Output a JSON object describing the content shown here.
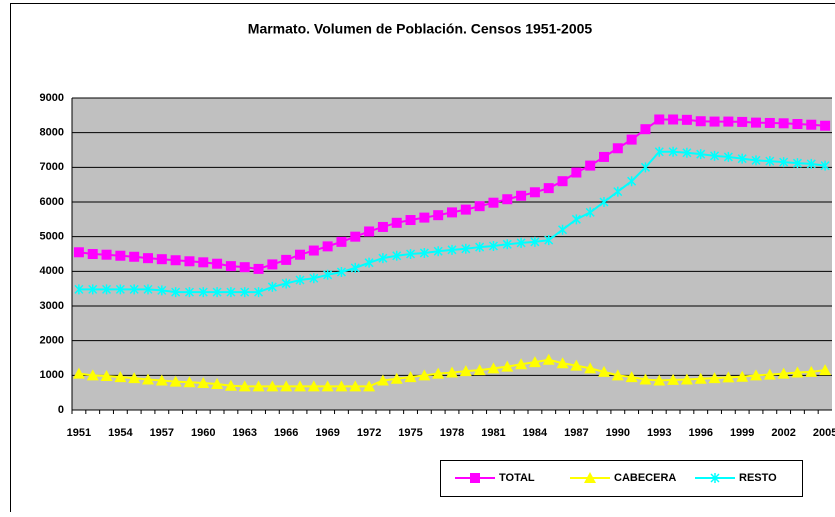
{
  "chart_data": {
    "type": "line",
    "title": "Marmato. Volumen de Población. Censos 1951-2005",
    "categories": [
      "1951",
      null,
      null,
      "1954",
      null,
      null,
      "1957",
      null,
      null,
      "1960",
      null,
      null,
      "1963",
      null,
      null,
      "1966",
      null,
      null,
      "1969",
      null,
      null,
      "1972",
      null,
      null,
      "1975",
      null,
      null,
      "1978",
      null,
      null,
      "1981",
      null,
      null,
      "1984",
      null,
      null,
      "1987",
      null,
      null,
      "1990",
      null,
      null,
      "1993",
      null,
      null,
      "1996",
      null,
      null,
      "1999",
      null,
      null,
      "2002",
      null,
      null,
      "2005"
    ],
    "series": [
      {
        "name": "TOTAL",
        "color": "#ff00ff",
        "marker": "square",
        "values": [
          4550,
          4500,
          4480,
          4450,
          4420,
          4380,
          4350,
          4320,
          4290,
          4260,
          4220,
          4150,
          4120,
          4070,
          4200,
          4330,
          4480,
          4600,
          4720,
          4850,
          5000,
          5150,
          5280,
          5400,
          5480,
          5550,
          5620,
          5700,
          5780,
          5880,
          5980,
          6080,
          6180,
          6280,
          6400,
          6600,
          6850,
          7050,
          7300,
          7550,
          7800,
          8100,
          8380,
          8380,
          8370,
          8330,
          8320,
          8320,
          8310,
          8290,
          8280,
          8270,
          8250,
          8230,
          8200
        ]
      },
      {
        "name": "CABECERA",
        "color": "#ffff00",
        "marker": "triangle",
        "values": [
          1050,
          1000,
          980,
          950,
          920,
          880,
          850,
          820,
          800,
          780,
          750,
          700,
          680,
          680,
          680,
          680,
          680,
          680,
          680,
          680,
          680,
          680,
          850,
          900,
          950,
          1000,
          1050,
          1080,
          1120,
          1150,
          1200,
          1250,
          1320,
          1380,
          1450,
          1350,
          1280,
          1200,
          1100,
          1000,
          950,
          880,
          850,
          870,
          880,
          900,
          920,
          940,
          960,
          1000,
          1020,
          1050,
          1080,
          1100,
          1150
        ]
      },
      {
        "name": "RESTO",
        "color": "#00ffff",
        "marker": "asterisk",
        "values": [
          3480,
          3480,
          3480,
          3480,
          3480,
          3480,
          3450,
          3400,
          3400,
          3400,
          3400,
          3400,
          3400,
          3400,
          3550,
          3650,
          3750,
          3800,
          3900,
          3980,
          4100,
          4250,
          4380,
          4450,
          4500,
          4530,
          4580,
          4620,
          4650,
          4700,
          4730,
          4780,
          4820,
          4850,
          4900,
          5200,
          5500,
          5700,
          6000,
          6300,
          6600,
          7000,
          7450,
          7450,
          7420,
          7380,
          7330,
          7300,
          7250,
          7200,
          7180,
          7150,
          7120,
          7100,
          7050
        ]
      }
    ],
    "ylim": [
      0,
      9000
    ],
    "yticks": [
      0,
      1000,
      2000,
      3000,
      4000,
      5000,
      6000,
      7000,
      8000,
      9000
    ],
    "grid": true,
    "legend": "bottom-right"
  }
}
